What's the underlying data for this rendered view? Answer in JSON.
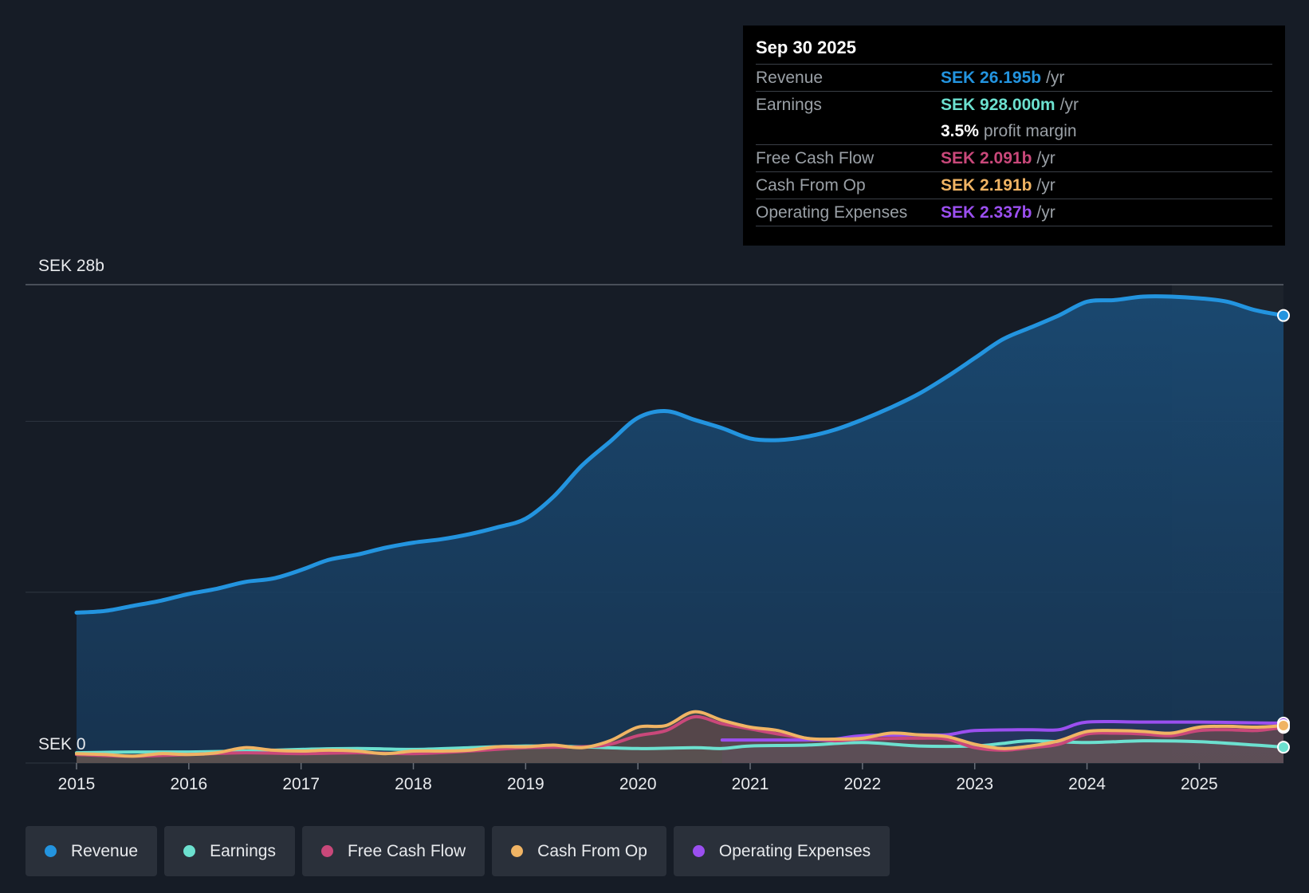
{
  "tooltip": {
    "date": "Sep 30 2025",
    "rows": [
      {
        "label": "Revenue",
        "value": "SEK 26.195b",
        "unit": "/yr",
        "color": "#2394df"
      },
      {
        "label": "Earnings",
        "value": "SEK 928.000m",
        "unit": "/yr",
        "color": "#6ce0cf"
      },
      {
        "label": "",
        "value": "3.5%",
        "unit": "profit margin",
        "color": "#ffffff"
      },
      {
        "label": "Free Cash Flow",
        "value": "SEK 2.091b",
        "unit": "/yr",
        "color": "#c9487a"
      },
      {
        "label": "Cash From Op",
        "value": "SEK 2.191b",
        "unit": "/yr",
        "color": "#f0b464"
      },
      {
        "label": "Operating Expenses",
        "value": "SEK 2.337b",
        "unit": "/yr",
        "color": "#9b4ff0"
      }
    ]
  },
  "legend": [
    {
      "label": "Revenue",
      "color": "#2394df"
    },
    {
      "label": "Earnings",
      "color": "#6ce0cf"
    },
    {
      "label": "Free Cash Flow",
      "color": "#c9487a"
    },
    {
      "label": "Cash From Op",
      "color": "#f0b464"
    },
    {
      "label": "Operating Expenses",
      "color": "#9b4ff0"
    }
  ],
  "chart_data": {
    "type": "line",
    "title": "",
    "y_top_label": "SEK 28b",
    "y_bottom_label": "SEK 0",
    "ylim": [
      0,
      28
    ],
    "xlim": [
      2015,
      2025.75
    ],
    "x_ticks": [
      "2015",
      "2016",
      "2017",
      "2018",
      "2019",
      "2020",
      "2021",
      "2022",
      "2023",
      "2024",
      "2025"
    ],
    "series": [
      {
        "name": "Revenue",
        "color": "#2394df",
        "x": [
          2015,
          2015.25,
          2015.5,
          2015.75,
          2016,
          2016.25,
          2016.5,
          2016.75,
          2017,
          2017.25,
          2017.5,
          2017.75,
          2018,
          2018.25,
          2018.5,
          2018.75,
          2019,
          2019.25,
          2019.5,
          2019.75,
          2020,
          2020.25,
          2020.5,
          2020.75,
          2021,
          2021.25,
          2021.5,
          2021.75,
          2022,
          2022.25,
          2022.5,
          2022.75,
          2023,
          2023.25,
          2023.5,
          2023.75,
          2024,
          2024.25,
          2024.5,
          2024.75,
          2025,
          2025.25,
          2025.5,
          2025.75
        ],
        "y": [
          8.8,
          8.9,
          9.2,
          9.5,
          9.9,
          10.2,
          10.6,
          10.8,
          11.3,
          11.9,
          12.2,
          12.6,
          12.9,
          13.1,
          13.4,
          13.8,
          14.3,
          15.6,
          17.4,
          18.8,
          20.2,
          20.6,
          20.1,
          19.6,
          19.0,
          18.9,
          19.1,
          19.5,
          20.1,
          20.8,
          21.6,
          22.6,
          23.7,
          24.8,
          25.5,
          26.2,
          27.0,
          27.1,
          27.3,
          27.3,
          27.2,
          27.0,
          26.5,
          26.195
        ]
      },
      {
        "name": "Earnings",
        "color": "#6ce0cf",
        "x": [
          2015,
          2015.5,
          2016,
          2016.5,
          2017,
          2017.5,
          2018,
          2018.5,
          2019,
          2019.5,
          2020,
          2020.5,
          2020.75,
          2021,
          2021.5,
          2022,
          2022.5,
          2023,
          2023.25,
          2023.5,
          2024,
          2024.5,
          2025,
          2025.5,
          2025.75
        ],
        "y": [
          0.6,
          0.65,
          0.65,
          0.7,
          0.8,
          0.85,
          0.8,
          0.9,
          1.0,
          0.95,
          0.85,
          0.9,
          0.85,
          1.0,
          1.05,
          1.2,
          1.0,
          1.0,
          1.15,
          1.3,
          1.2,
          1.3,
          1.25,
          1.05,
          0.928
        ]
      },
      {
        "name": "Free Cash Flow",
        "color": "#c9487a",
        "x": [
          2015,
          2015.5,
          2016,
          2016.5,
          2017,
          2017.5,
          2018,
          2018.5,
          2019,
          2019.5,
          2019.75,
          2020,
          2020.25,
          2020.5,
          2020.75,
          2021,
          2021.25,
          2021.5,
          2021.75,
          2022,
          2022.5,
          2022.75,
          2023,
          2023.25,
          2023.5,
          2023.75,
          2024,
          2024.25,
          2024.5,
          2024.75,
          2025,
          2025.25,
          2025.5,
          2025.75
        ],
        "y": [
          0.5,
          0.4,
          0.5,
          0.6,
          0.55,
          0.6,
          0.55,
          0.7,
          0.9,
          0.95,
          1.1,
          1.6,
          1.9,
          2.7,
          2.3,
          2.0,
          1.7,
          1.45,
          1.3,
          1.4,
          1.45,
          1.4,
          0.9,
          0.75,
          0.9,
          1.1,
          1.7,
          1.75,
          1.7,
          1.6,
          1.9,
          1.95,
          1.9,
          2.091
        ]
      },
      {
        "name": "Cash From Op",
        "color": "#f0b464",
        "x": [
          2015,
          2015.25,
          2015.5,
          2015.75,
          2016,
          2016.25,
          2016.5,
          2016.75,
          2017,
          2017.25,
          2017.5,
          2017.75,
          2018,
          2018.25,
          2018.5,
          2018.75,
          2019,
          2019.25,
          2019.5,
          2019.75,
          2020,
          2020.25,
          2020.5,
          2020.75,
          2021,
          2021.25,
          2021.5,
          2021.75,
          2022,
          2022.25,
          2022.5,
          2022.75,
          2023,
          2023.25,
          2023.5,
          2023.75,
          2024,
          2024.25,
          2024.5,
          2024.75,
          2025,
          2025.25,
          2025.5,
          2025.75
        ],
        "y": [
          0.55,
          0.5,
          0.4,
          0.55,
          0.5,
          0.6,
          0.9,
          0.75,
          0.7,
          0.75,
          0.7,
          0.55,
          0.7,
          0.7,
          0.75,
          0.95,
          0.95,
          1.05,
          0.9,
          1.3,
          2.1,
          2.2,
          3.0,
          2.5,
          2.1,
          1.9,
          1.45,
          1.4,
          1.45,
          1.75,
          1.65,
          1.55,
          1.1,
          0.85,
          1.0,
          1.3,
          1.85,
          1.9,
          1.85,
          1.75,
          2.1,
          2.15,
          2.1,
          2.191
        ]
      },
      {
        "name": "Operating Expenses",
        "color": "#9b4ff0",
        "x": [
          2020.75,
          2021,
          2021.5,
          2021.75,
          2022,
          2022.5,
          2022.75,
          2023,
          2023.5,
          2023.75,
          2024,
          2024.5,
          2025,
          2025.5,
          2025.75
        ],
        "y": [
          1.35,
          1.35,
          1.35,
          1.4,
          1.6,
          1.65,
          1.65,
          1.9,
          1.95,
          1.95,
          2.4,
          2.4,
          2.4,
          2.35,
          2.337
        ]
      }
    ],
    "legend_position": "bottom"
  }
}
